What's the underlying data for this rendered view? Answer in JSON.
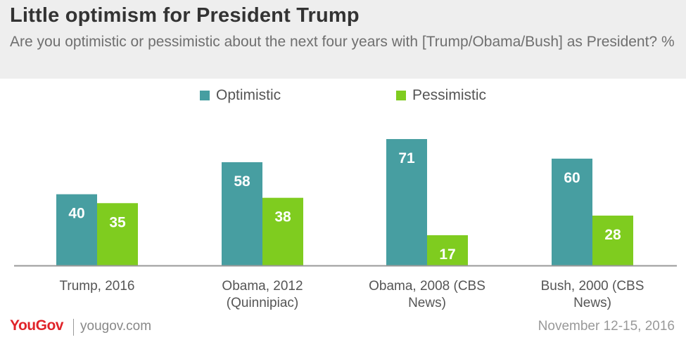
{
  "header": {
    "title": "Little optimism for President Trump",
    "subtitle": "Are you optimistic or pessimistic about the next four years with [Trump/Obama/Bush] as President? %"
  },
  "footer": {
    "brand": "YouGov",
    "url": "yougov.com",
    "date": "November 12-15, 2016"
  },
  "colors": {
    "optimistic": "#479ea1",
    "pessimistic": "#7fcc1f",
    "axis": "#999999"
  },
  "chart_data": {
    "type": "bar",
    "title": "Little optimism for President Trump",
    "subtitle": "Are you optimistic or pessimistic about the next four years with [Trump/Obama/Bush] as President? %",
    "categories": [
      "Trump, 2016",
      "Obama, 2012 (Quinnipiac)",
      "Obama, 2008 (CBS News)",
      "Bush, 2000 (CBS News)"
    ],
    "series": [
      {
        "name": "Optimistic",
        "values": [
          40,
          58,
          71,
          60
        ]
      },
      {
        "name": "Pessimistic",
        "values": [
          35,
          38,
          17,
          28
        ]
      }
    ],
    "ylim": [
      0,
      71
    ],
    "legend": "top-center",
    "grid": false,
    "data_labels": true
  }
}
